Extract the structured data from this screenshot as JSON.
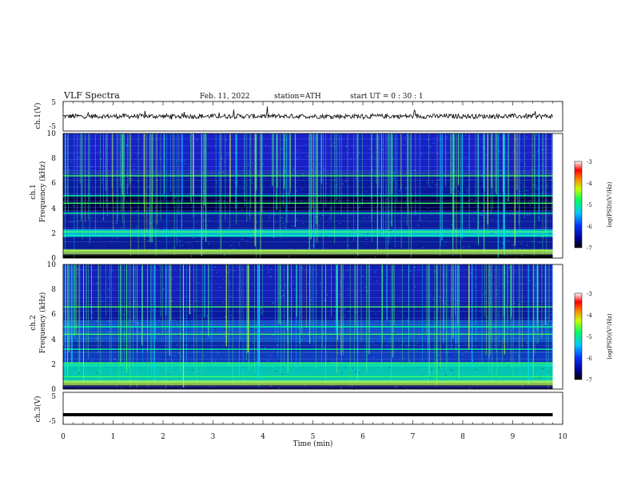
{
  "header": {
    "title": "VLF  Spectra",
    "date": "Feb. 11, 2022",
    "station": "station=ATH",
    "start_ut": "start  UT  =   0 : 30 : 1"
  },
  "chart_data": [
    {
      "type": "line",
      "name": "ch1-waveform",
      "ylabel": "ch.1(V)",
      "ylim": [
        -5,
        5
      ],
      "yticks": [
        "5",
        "-5"
      ],
      "xlim": [
        0,
        10
      ],
      "baseline_value": 0,
      "x_end": 9.8
    },
    {
      "type": "heatmap",
      "name": "ch1-spectrogram",
      "ylabel": "ch.1\nFrequency (kHz)",
      "ylim": [
        0,
        10
      ],
      "yticks": [
        "0",
        "2",
        "4",
        "6",
        "8",
        "10"
      ],
      "xlim": [
        0,
        10
      ],
      "x_end": 9.8,
      "notable_lines_khz": [
        6.6,
        5.0,
        4.4,
        3.6,
        2.1,
        1.8,
        0.6
      ],
      "colorbar": {
        "label": "log(PSD)(V²/Hz)",
        "range": [
          -7,
          -3
        ],
        "ticks": [
          "-3",
          "-4",
          "-5",
          "-6",
          "-7"
        ]
      }
    },
    {
      "type": "heatmap",
      "name": "ch2-spectrogram",
      "ylabel": "ch.2\nFrequency (kHz)",
      "ylim": [
        0,
        10
      ],
      "yticks": [
        "0",
        "2",
        "4",
        "6",
        "8",
        "10"
      ],
      "xlim": [
        0,
        10
      ],
      "x_end": 9.8,
      "notable_lines_khz": [
        6.6,
        5.0,
        4.4,
        3.2,
        2.1,
        1.9,
        1.0
      ],
      "colorbar": {
        "label": "log(PSD)(V²/Hz)",
        "range": [
          -7,
          -3
        ],
        "ticks": [
          "-3",
          "-4",
          "-5",
          "-6",
          "-7"
        ]
      }
    },
    {
      "type": "line",
      "name": "ch3-waveform",
      "ylabel": "ch.3(V)",
      "ylim": [
        -5,
        5
      ],
      "yticks": [
        "5",
        "-5"
      ],
      "xlim": [
        0,
        10
      ],
      "baseline_value": -2,
      "x_end": 9.8
    }
  ],
  "xaxis": {
    "label": "Time  (min)",
    "ticks": [
      "0",
      "1",
      "2",
      "3",
      "4",
      "5",
      "6",
      "7",
      "8",
      "9",
      "10"
    ]
  }
}
